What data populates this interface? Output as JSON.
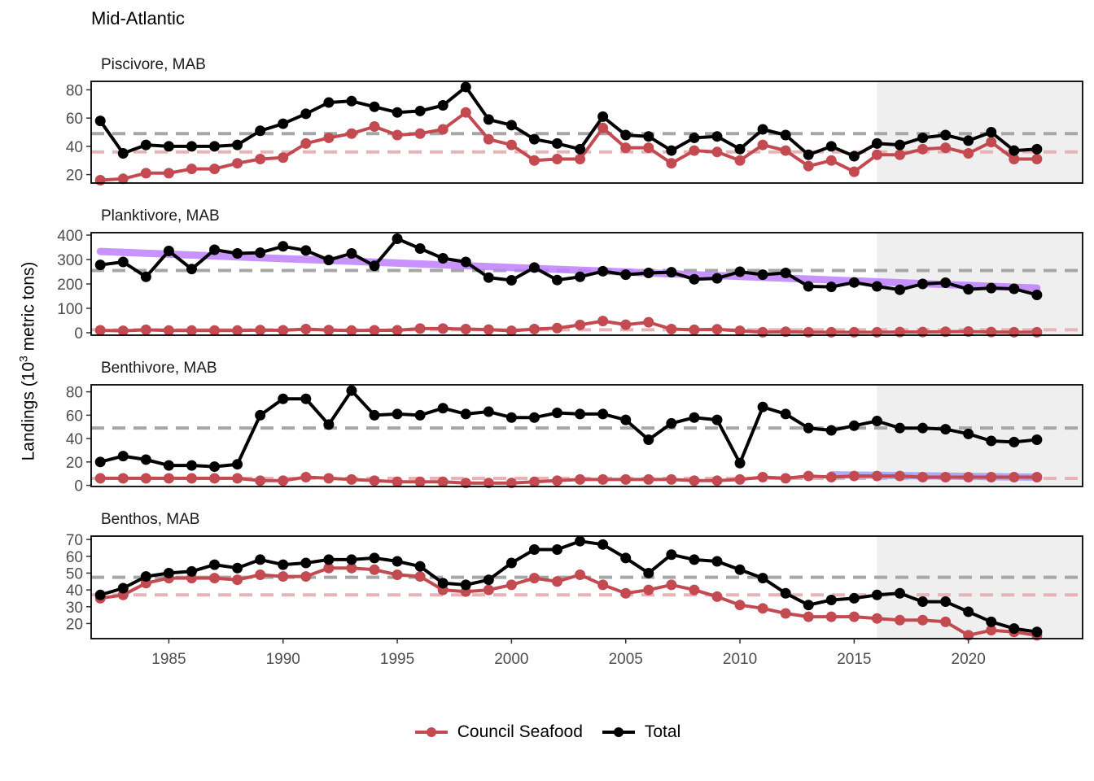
{
  "figure_title": "Mid-Atlantic",
  "y_axis_label_prefix": "Landings (10",
  "y_axis_label_exp": "3",
  "y_axis_label_suffix": " metric tons)",
  "colors": {
    "council": "#c24a50",
    "total": "#000000",
    "council_mean": "#e8b3b6",
    "total_mean": "#a6a6a6",
    "trend": "#bf80ff",
    "trend_small": "#9ea0f4",
    "shade": "#efefef"
  },
  "legend": [
    {
      "label": "Council Seafood",
      "series": "council"
    },
    {
      "label": "Total",
      "series": "total"
    }
  ],
  "chart_data": {
    "type": "line",
    "x_ticks": [
      1985,
      1990,
      1995,
      2000,
      2005,
      2010,
      2015,
      2020
    ],
    "xlim": [
      1981.6,
      2025
    ],
    "shaded_from_year": 2016,
    "panels": [
      {
        "title": "Piscivore, MAB",
        "ylim": [
          14,
          86
        ],
        "yticks": [
          20,
          40,
          60,
          80
        ],
        "total_mean": 49,
        "council_mean": 36,
        "series": [
          {
            "name": "Total",
            "key": "total",
            "x": [
              1982,
              1983,
              1984,
              1985,
              1986,
              1987,
              1988,
              1989,
              1990,
              1991,
              1992,
              1993,
              1994,
              1995,
              1996,
              1997,
              1998,
              1999,
              2000,
              2001,
              2002,
              2003,
              2004,
              2005,
              2006,
              2007,
              2008,
              2009,
              2010,
              2011,
              2012,
              2013,
              2014,
              2015,
              2016,
              2017,
              2018,
              2019,
              2020,
              2021,
              2022,
              2023
            ],
            "values": [
              58,
              35,
              41,
              40,
              40,
              40,
              41,
              51,
              56,
              63,
              71,
              72,
              68,
              64,
              65,
              69,
              82,
              59,
              55,
              45,
              42,
              38,
              61,
              48,
              47,
              37,
              46,
              47,
              38,
              52,
              48,
              34,
              40,
              33,
              42,
              41,
              46,
              48,
              44,
              50,
              37,
              38
            ]
          },
          {
            "name": "Council Seafood",
            "key": "council",
            "x": [
              1982,
              1983,
              1984,
              1985,
              1986,
              1987,
              1988,
              1989,
              1990,
              1991,
              1992,
              1993,
              1994,
              1995,
              1996,
              1997,
              1998,
              1999,
              2000,
              2001,
              2002,
              2003,
              2004,
              2005,
              2006,
              2007,
              2008,
              2009,
              2010,
              2011,
              2012,
              2013,
              2014,
              2015,
              2016,
              2017,
              2018,
              2019,
              2020,
              2021,
              2022,
              2023
            ],
            "values": [
              16,
              17,
              21,
              21,
              24,
              24,
              28,
              31,
              32,
              42,
              46,
              49,
              54,
              48,
              49,
              52,
              64,
              45,
              41,
              30,
              31,
              31,
              53,
              39,
              39,
              28,
              37,
              36,
              30,
              41,
              37,
              26,
              30,
              22,
              34,
              34,
              38,
              39,
              35,
              43,
              31,
              31
            ]
          }
        ]
      },
      {
        "title": "Planktivore, MAB",
        "ylim": [
          -10,
          410
        ],
        "yticks": [
          0,
          100,
          200,
          300,
          400
        ],
        "total_mean": 255,
        "council_mean": 12,
        "trend": {
          "x": [
            1982,
            2023
          ],
          "values": [
            333,
            183
          ]
        },
        "series": [
          {
            "name": "Total",
            "key": "total",
            "x": [
              1982,
              1983,
              1984,
              1985,
              1986,
              1987,
              1988,
              1989,
              1990,
              1991,
              1992,
              1993,
              1994,
              1995,
              1996,
              1997,
              1998,
              1999,
              2000,
              2001,
              2002,
              2003,
              2004,
              2005,
              2006,
              2007,
              2008,
              2009,
              2010,
              2011,
              2012,
              2013,
              2014,
              2015,
              2016,
              2017,
              2018,
              2019,
              2020,
              2021,
              2022,
              2023
            ],
            "values": [
              278,
              290,
              229,
              335,
              261,
              340,
              325,
              328,
              354,
              337,
              298,
              325,
              274,
              385,
              345,
              305,
              290,
              226,
              215,
              267,
              216,
              229,
              252,
              238,
              245,
              248,
              219,
              223,
              250,
              238,
              245,
              190,
              188,
              206,
              190,
              176,
              200,
              205,
              178,
              183,
              180,
              155
            ]
          },
          {
            "name": "Council Seafood",
            "key": "council",
            "x": [
              1982,
              1983,
              1984,
              1985,
              1986,
              1987,
              1988,
              1989,
              1990,
              1991,
              1992,
              1993,
              1994,
              1995,
              1996,
              1997,
              1998,
              1999,
              2000,
              2001,
              2002,
              2003,
              2004,
              2005,
              2006,
              2007,
              2008,
              2009,
              2010,
              2011,
              2012,
              2013,
              2014,
              2015,
              2016,
              2017,
              2018,
              2019,
              2020,
              2021,
              2022,
              2023
            ],
            "values": [
              10,
              8,
              12,
              9,
              9,
              9,
              9,
              11,
              10,
              15,
              11,
              9,
              10,
              10,
              17,
              17,
              15,
              13,
              8,
              15,
              19,
              32,
              48,
              33,
              43,
              15,
              12,
              14,
              8,
              2,
              4,
              2,
              2,
              2,
              2,
              3,
              3,
              4,
              5,
              3,
              2,
              2
            ]
          }
        ]
      },
      {
        "title": "Benthivore, MAB",
        "ylim": [
          -1,
          86
        ],
        "yticks": [
          0,
          20,
          40,
          60,
          80
        ],
        "total_mean": 49,
        "council_mean": 6,
        "trend": {
          "x": [
            2014,
            2023
          ],
          "values": [
            9,
            7
          ]
        },
        "series": [
          {
            "name": "Total",
            "key": "total",
            "x": [
              1982,
              1983,
              1984,
              1985,
              1986,
              1987,
              1988,
              1989,
              1990,
              1991,
              1992,
              1993,
              1994,
              1995,
              1996,
              1997,
              1998,
              1999,
              2000,
              2001,
              2002,
              2003,
              2004,
              2005,
              2006,
              2007,
              2008,
              2009,
              2010,
              2011,
              2012,
              2013,
              2014,
              2015,
              2016,
              2017,
              2018,
              2019,
              2020,
              2021,
              2022,
              2023
            ],
            "values": [
              20,
              25,
              22,
              17,
              17,
              16,
              18,
              60,
              74,
              74,
              52,
              81,
              60,
              61,
              60,
              66,
              61,
              63,
              58,
              58,
              62,
              61,
              61,
              56,
              39,
              53,
              58,
              56,
              19,
              67,
              61,
              49,
              47,
              51,
              55,
              49,
              49,
              48,
              44,
              38,
              37,
              39
            ]
          },
          {
            "name": "Council Seafood",
            "key": "council",
            "x": [
              1982,
              1983,
              1984,
              1985,
              1986,
              1987,
              1988,
              1989,
              1990,
              1991,
              1992,
              1993,
              1994,
              1995,
              1996,
              1997,
              1998,
              1999,
              2000,
              2001,
              2002,
              2003,
              2004,
              2005,
              2006,
              2007,
              2008,
              2009,
              2010,
              2011,
              2012,
              2013,
              2014,
              2015,
              2016,
              2017,
              2018,
              2019,
              2020,
              2021,
              2022,
              2023
            ],
            "values": [
              6,
              6,
              6,
              6,
              6,
              6,
              6,
              4,
              4,
              7,
              6,
              5,
              4,
              3,
              3,
              3,
              2,
              2,
              2,
              3,
              4,
              5,
              5,
              5,
              5,
              5,
              4,
              4,
              5,
              7,
              6,
              8,
              7,
              8,
              8,
              8,
              7,
              7,
              7,
              7,
              7,
              7
            ]
          }
        ]
      },
      {
        "title": "Benthos, MAB",
        "ylim": [
          11,
          72
        ],
        "yticks": [
          20,
          30,
          40,
          50,
          60,
          70
        ],
        "total_mean": 47.5,
        "council_mean": 37,
        "series": [
          {
            "name": "Total",
            "key": "total",
            "x": [
              1982,
              1983,
              1984,
              1985,
              1986,
              1987,
              1988,
              1989,
              1990,
              1991,
              1992,
              1993,
              1994,
              1995,
              1996,
              1997,
              1998,
              1999,
              2000,
              2001,
              2002,
              2003,
              2004,
              2005,
              2006,
              2007,
              2008,
              2009,
              2010,
              2011,
              2012,
              2013,
              2014,
              2015,
              2016,
              2017,
              2018,
              2019,
              2020,
              2021,
              2022,
              2023
            ],
            "values": [
              37,
              41,
              48,
              50,
              51,
              55,
              53,
              58,
              55,
              56,
              58,
              58,
              59,
              57,
              54,
              44,
              43,
              46,
              56,
              64,
              64,
              69,
              67,
              59,
              50,
              61,
              58,
              57,
              52,
              47,
              38,
              31,
              34,
              35,
              37,
              38,
              33,
              33,
              27,
              21,
              17,
              15
            ]
          },
          {
            "name": "Council Seafood",
            "key": "council",
            "x": [
              1982,
              1983,
              1984,
              1985,
              1986,
              1987,
              1988,
              1989,
              1990,
              1991,
              1992,
              1993,
              1994,
              1995,
              1996,
              1997,
              1998,
              1999,
              2000,
              2001,
              2002,
              2003,
              2004,
              2005,
              2006,
              2007,
              2008,
              2009,
              2010,
              2011,
              2012,
              2013,
              2014,
              2015,
              2016,
              2017,
              2018,
              2019,
              2020,
              2021,
              2022,
              2023
            ],
            "values": [
              35,
              37,
              44,
              47,
              47,
              47,
              46,
              49,
              48,
              48,
              53,
              53,
              52,
              49,
              48,
              40,
              39,
              40,
              43,
              47,
              45,
              49,
              43,
              38,
              40,
              43,
              40,
              36,
              31,
              29,
              26,
              24,
              24,
              24,
              23,
              22,
              22,
              21,
              13,
              16,
              15,
              13
            ]
          }
        ]
      }
    ]
  }
}
